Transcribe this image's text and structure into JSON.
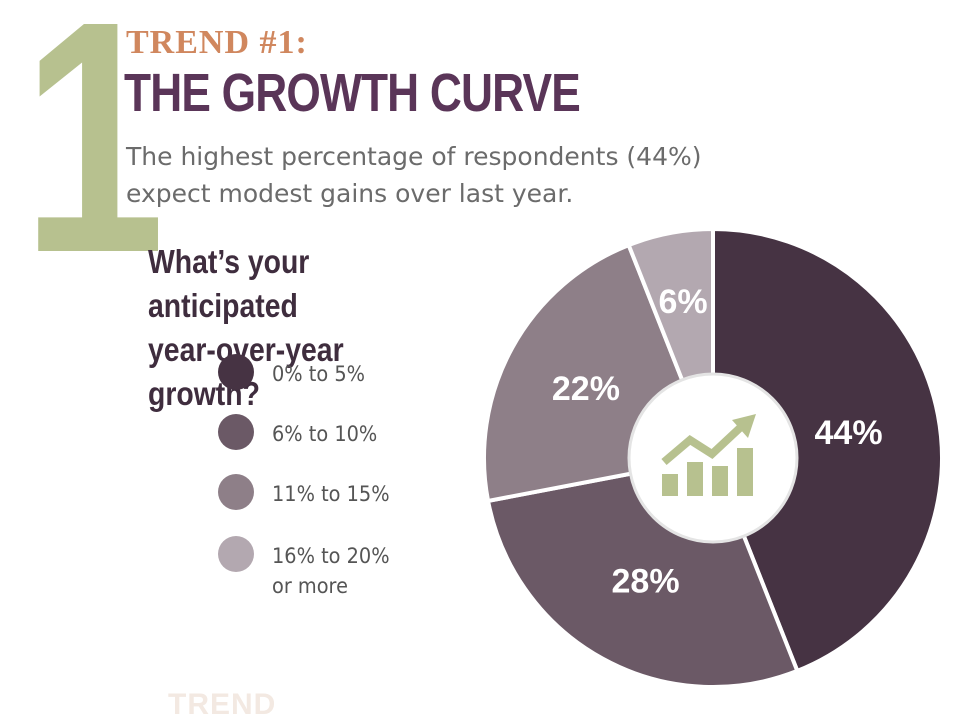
{
  "header": {
    "number": "1",
    "label": "TREND #1:",
    "title": "THE GROWTH CURVE",
    "subtitle_lines": [
      "The highest percentage of respondents (44%)",
      "expect modest gains over last year."
    ]
  },
  "question_lines": [
    "What’s your anticipated",
    "year-over-year growth?"
  ],
  "footer_ghost": "TREND",
  "colors": {
    "accent_green": "#b7c18f",
    "accent_orange": "#d0875e",
    "title_purple": "#5a3558"
  },
  "center_icon": "bar-chart-growth-arrow-icon",
  "chart_data": {
    "type": "pie",
    "title": "What’s your anticipated year-over-year growth?",
    "slices": [
      {
        "label": "0% to 5%",
        "value": 44,
        "display": "44%",
        "color": "#463343"
      },
      {
        "label": "6% to 10%",
        "value": 28,
        "display": "28%",
        "color": "#6b5966"
      },
      {
        "label": "11% to 15%",
        "value": 22,
        "display": "22%",
        "color": "#8e7f88"
      },
      {
        "label": "16% to 20% or more",
        "value": 6,
        "display": "6%",
        "color": "#b3a8b0"
      }
    ],
    "legend": [
      {
        "lines": [
          "0% to 5%"
        ],
        "color": "#463343"
      },
      {
        "lines": [
          "6% to 10%"
        ],
        "color": "#6b5966"
      },
      {
        "lines": [
          "11% to 15%"
        ],
        "color": "#8e7f88"
      },
      {
        "lines": [
          "16% to 20%",
          "or more"
        ],
        "color": "#b3a8b0"
      }
    ],
    "legend_placement": "left"
  }
}
